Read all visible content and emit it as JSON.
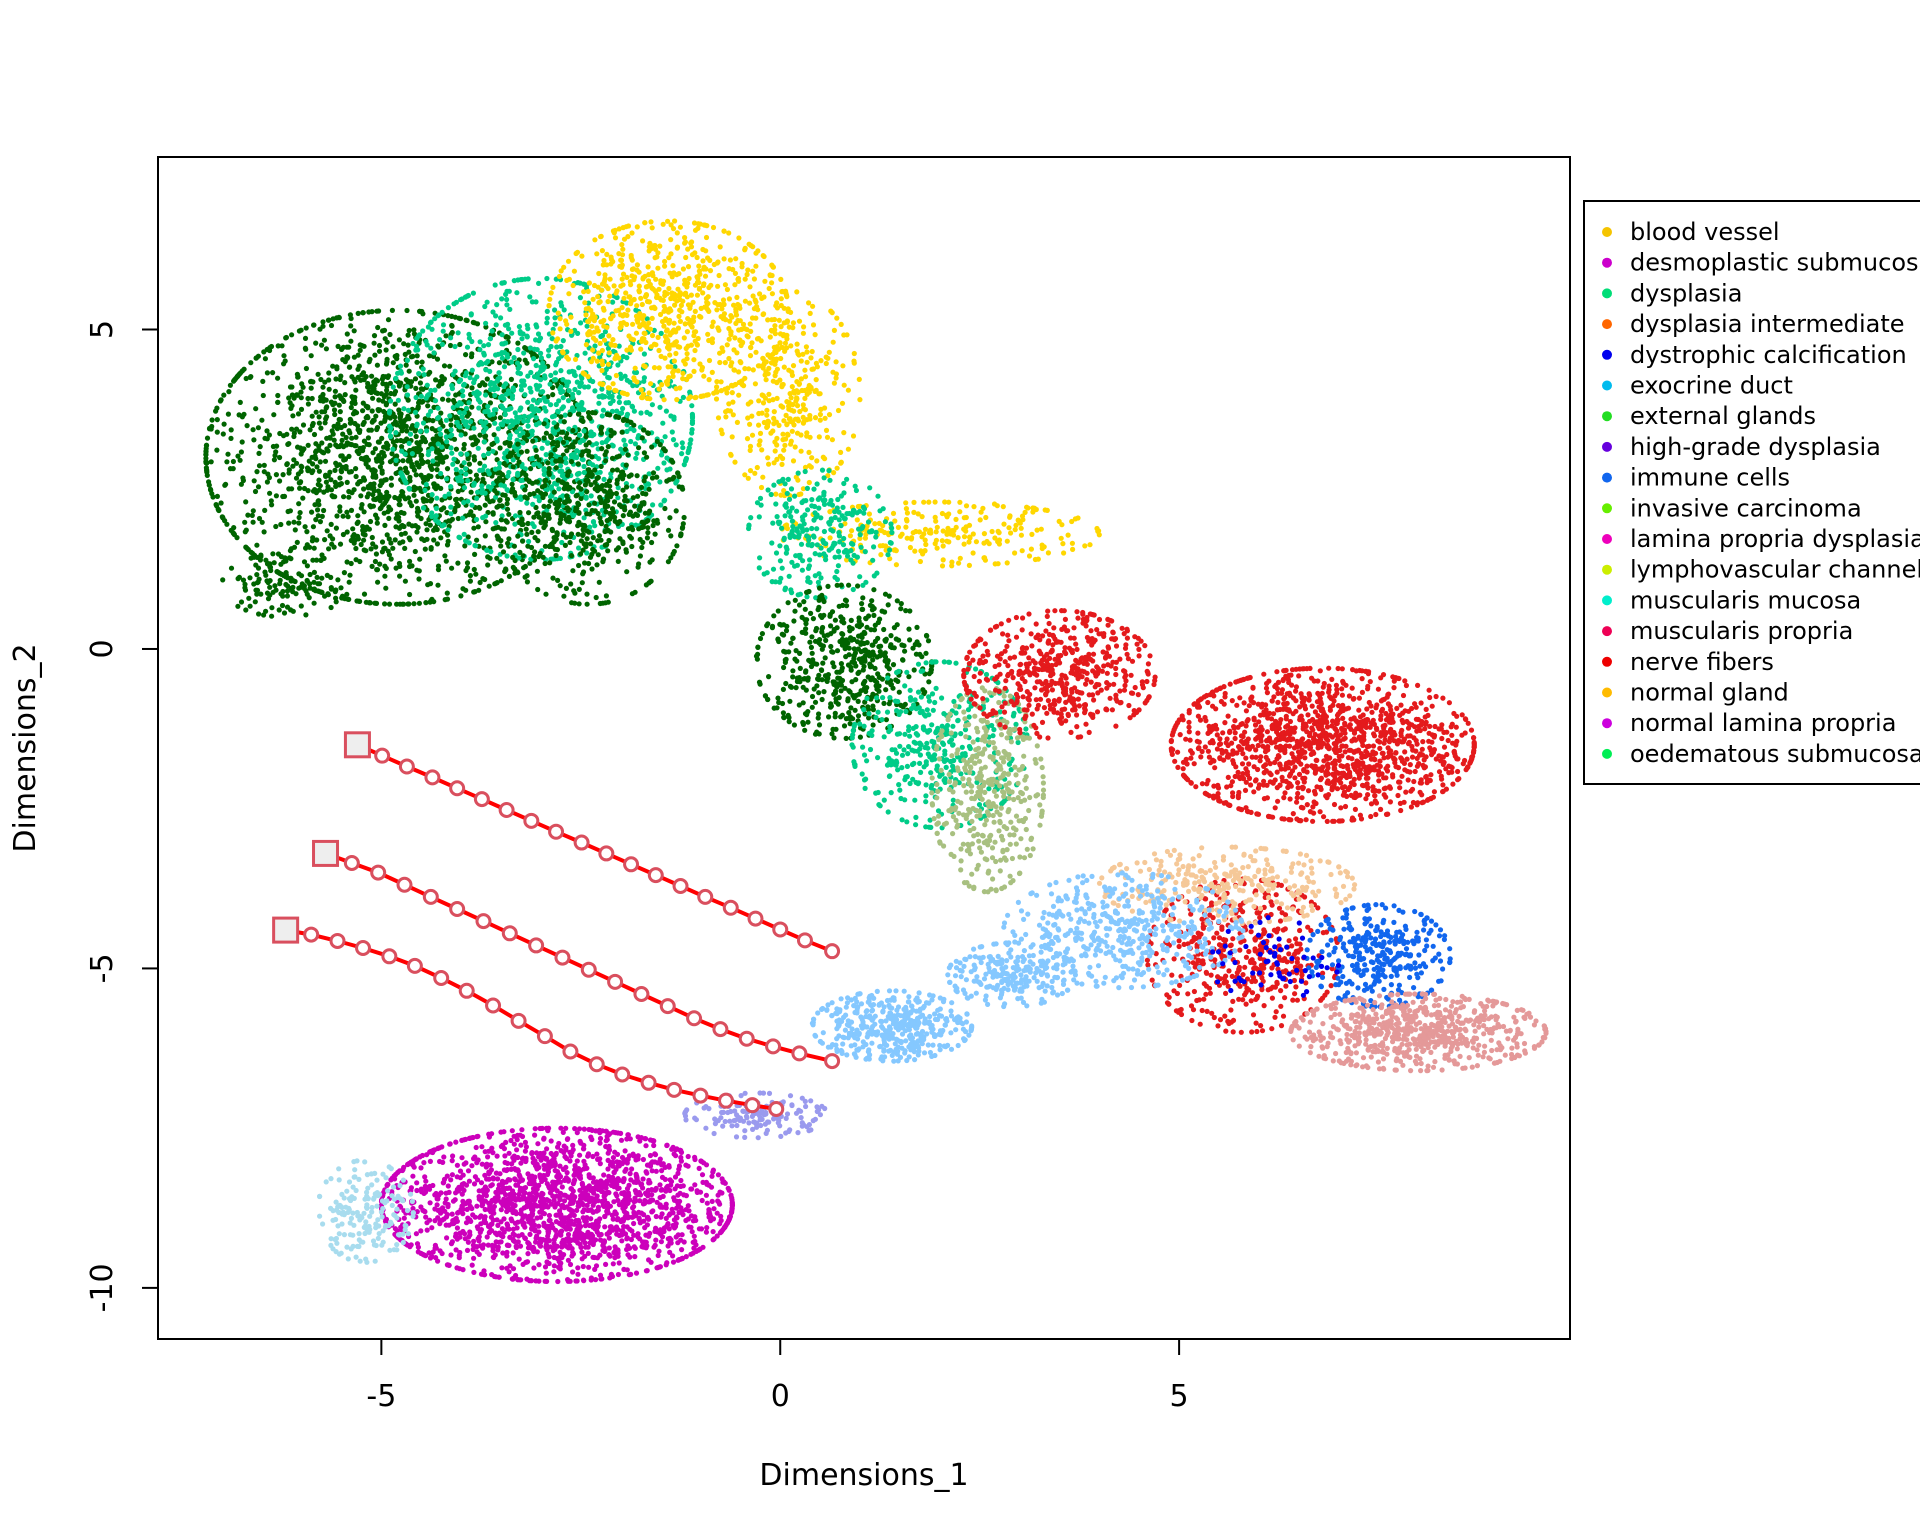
{
  "chart_data": {
    "type": "scatter",
    "title": "",
    "xlabel": "Dimensions_1",
    "ylabel": "Dimensions_2",
    "xlim": [
      -7.8,
      9.9
    ],
    "ylim": [
      -10.8,
      7.7
    ],
    "xticks": [
      -5,
      0,
      5
    ],
    "yticks": [
      -10,
      -5,
      0,
      5
    ],
    "xtick_labels": [
      "-5",
      "0",
      "5"
    ],
    "ytick_labels": [
      "-10",
      "-5",
      "0",
      "5"
    ],
    "grid": false,
    "legend_position": "right, clipped at image edge",
    "legend": [
      {
        "label": "blood vessel",
        "color": "#F5C400"
      },
      {
        "label": "desmoplastic submucosa",
        "color": "#CC00CC"
      },
      {
        "label": "dysplasia",
        "color": "#00DD77"
      },
      {
        "label": "dysplasia intermediate",
        "color": "#FF6600"
      },
      {
        "label": "dystrophic calcification",
        "color": "#0000EE"
      },
      {
        "label": "exocrine duct",
        "color": "#00BBEE"
      },
      {
        "label": "external glands",
        "color": "#22DD22"
      },
      {
        "label": "high-grade dysplasia",
        "color": "#6600DD"
      },
      {
        "label": "immune cells",
        "color": "#1166EE"
      },
      {
        "label": "invasive carcinoma",
        "color": "#66EE00"
      },
      {
        "label": "lamina propria dysplasia",
        "color": "#EE00BB"
      },
      {
        "label": "lymphovascular channel",
        "color": "#CCEE00"
      },
      {
        "label": "muscularis mucosa",
        "color": "#00EECC"
      },
      {
        "label": "muscularis propria",
        "color": "#EE0055"
      },
      {
        "label": "nerve fibers",
        "color": "#EE0000"
      },
      {
        "label": "normal gland",
        "color": "#FFBB00"
      },
      {
        "label": "normal lamina propria",
        "color": "#CC00DD"
      },
      {
        "label": "oedematous submucosa",
        "color": "#00EE55"
      }
    ],
    "clusters": [
      {
        "color": "#006400",
        "cx": -4.8,
        "cy": 3.0,
        "rx": 2.4,
        "ry": 2.3,
        "n": 1800
      },
      {
        "color": "#006400",
        "cx": -6.2,
        "cy": 1.0,
        "rx": 0.8,
        "ry": 0.5,
        "n": 120
      },
      {
        "color": "#00CC88",
        "cx": -3.0,
        "cy": 3.6,
        "rx": 1.9,
        "ry": 2.2,
        "n": 1100
      },
      {
        "color": "#006400",
        "cx": -2.4,
        "cy": 2.2,
        "rx": 1.2,
        "ry": 1.5,
        "n": 500
      },
      {
        "color": "#FFD700",
        "cx": -1.4,
        "cy": 5.3,
        "rx": 1.5,
        "ry": 1.4,
        "n": 700
      },
      {
        "color": "#FFD700",
        "cx": 0.1,
        "cy": 4.0,
        "rx": 0.9,
        "ry": 1.6,
        "n": 350
      },
      {
        "color": "#FFD700",
        "cx": 2.0,
        "cy": 1.8,
        "rx": 2.0,
        "ry": 0.5,
        "n": 250
      },
      {
        "color": "#00CC88",
        "cx": 0.5,
        "cy": 1.8,
        "rx": 0.9,
        "ry": 1.0,
        "n": 260
      },
      {
        "color": "#006400",
        "cx": 0.8,
        "cy": -0.2,
        "rx": 1.1,
        "ry": 1.2,
        "n": 500
      },
      {
        "color": "#00CC88",
        "cx": 2.0,
        "cy": -1.5,
        "rx": 1.1,
        "ry": 1.3,
        "n": 380
      },
      {
        "color": "#A8C080",
        "cx": 2.6,
        "cy": -2.2,
        "rx": 0.7,
        "ry": 1.6,
        "n": 380
      },
      {
        "color": "#E41A1C",
        "cx": 3.5,
        "cy": -0.4,
        "rx": 1.2,
        "ry": 1.0,
        "n": 500
      },
      {
        "color": "#E41A1C",
        "cx": 6.8,
        "cy": -1.5,
        "rx": 1.9,
        "ry": 1.2,
        "n": 1300
      },
      {
        "color": "#E41A1C",
        "cx": 5.8,
        "cy": -4.8,
        "rx": 1.2,
        "ry": 1.2,
        "n": 450
      },
      {
        "color": "#F5C898",
        "cx": 5.6,
        "cy": -3.7,
        "rx": 1.6,
        "ry": 0.6,
        "n": 300
      },
      {
        "color": "#85C8FF",
        "cx": 4.3,
        "cy": -4.4,
        "rx": 1.5,
        "ry": 0.9,
        "n": 450
      },
      {
        "color": "#1166EE",
        "cx": 7.5,
        "cy": -4.8,
        "rx": 0.9,
        "ry": 0.8,
        "n": 320
      },
      {
        "color": "#E49999",
        "cx": 8.0,
        "cy": -6.0,
        "rx": 1.6,
        "ry": 0.6,
        "n": 650
      },
      {
        "color": "#85C8FF",
        "cx": 1.4,
        "cy": -5.9,
        "rx": 1.0,
        "ry": 0.55,
        "n": 420
      },
      {
        "color": "#85C8FF",
        "cx": 2.9,
        "cy": -5.1,
        "rx": 0.8,
        "ry": 0.5,
        "n": 220
      },
      {
        "color": "#9A9AEE",
        "cx": -0.3,
        "cy": -7.3,
        "rx": 0.9,
        "ry": 0.35,
        "n": 150
      },
      {
        "color": "#CC00BB",
        "cx": -2.8,
        "cy": -8.7,
        "rx": 2.2,
        "ry": 1.2,
        "n": 1800
      },
      {
        "color": "#A8DCEE",
        "cx": -5.2,
        "cy": -8.8,
        "rx": 0.6,
        "ry": 0.8,
        "n": 180
      },
      {
        "color": "#0000EE",
        "cx": 6.2,
        "cy": -4.9,
        "rx": 0.8,
        "ry": 0.7,
        "n": 60
      }
    ],
    "trajectories": [
      {
        "name": "",
        "x": [
          -5.3,
          -4.99,
          -4.68,
          -4.36,
          -4.05,
          -3.74,
          -3.43,
          -3.12,
          -2.81,
          -2.49,
          -2.18,
          -1.87,
          -1.56,
          -1.25,
          -0.94,
          -0.62,
          -0.31,
          0.0,
          0.31,
          0.65
        ],
        "y": [
          -1.5,
          -1.67,
          -1.84,
          -2.01,
          -2.18,
          -2.35,
          -2.52,
          -2.69,
          -2.86,
          -3.03,
          -3.2,
          -3.37,
          -3.54,
          -3.71,
          -3.88,
          -4.05,
          -4.22,
          -4.39,
          -4.56,
          -4.73
        ]
      },
      {
        "name": "",
        "x": [
          -5.7,
          -5.37,
          -5.04,
          -4.71,
          -4.38,
          -4.05,
          -3.72,
          -3.39,
          -3.06,
          -2.73,
          -2.4,
          -2.07,
          -1.74,
          -1.41,
          -1.08,
          -0.75,
          -0.42,
          -0.09,
          0.24,
          0.65
        ],
        "y": [
          -3.2,
          -3.35,
          -3.5,
          -3.69,
          -3.88,
          -4.07,
          -4.26,
          -4.45,
          -4.64,
          -4.83,
          -5.02,
          -5.21,
          -5.4,
          -5.59,
          -5.78,
          -5.95,
          -6.1,
          -6.22,
          -6.33,
          -6.45
        ]
      },
      {
        "name": "",
        "x": [
          -6.2,
          -5.88,
          -5.55,
          -5.23,
          -4.9,
          -4.58,
          -4.25,
          -3.93,
          -3.6,
          -3.28,
          -2.95,
          -2.63,
          -2.3,
          -1.98,
          -1.65,
          -1.33,
          -1.0,
          -0.68,
          -0.35,
          -0.05
        ],
        "y": [
          -4.4,
          -4.47,
          -4.57,
          -4.68,
          -4.81,
          -4.96,
          -5.15,
          -5.35,
          -5.58,
          -5.82,
          -6.06,
          -6.3,
          -6.5,
          -6.66,
          -6.79,
          -6.9,
          -6.99,
          -7.07,
          -7.14,
          -7.2
        ]
      }
    ]
  }
}
